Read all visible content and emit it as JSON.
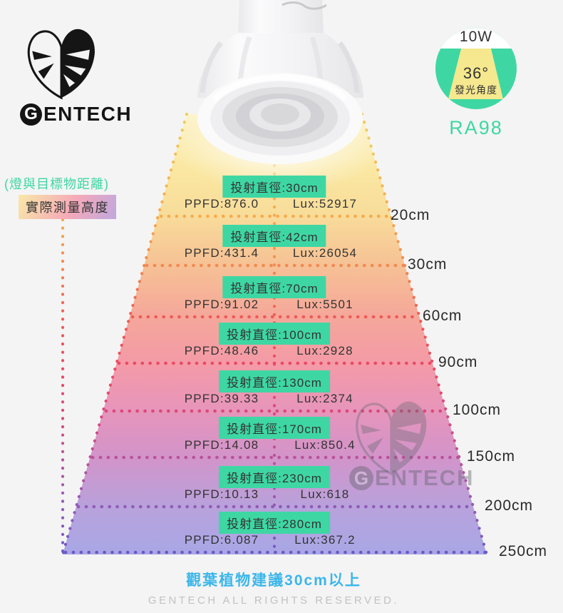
{
  "brand": {
    "logo_g": "G",
    "logo_rest": "ENTECH",
    "logo_icon": "monstera-leaf-icon"
  },
  "badge": {
    "wattage": "10W",
    "beam_angle": "36°",
    "beam_angle_label": "發光角度",
    "cri": "RA98",
    "circle_color": "#3ed7a3",
    "cone_color": "#f5e88e"
  },
  "left_labels": {
    "distance_note": "(燈與目標物距離)",
    "height_label": "實際測量高度"
  },
  "levels": [
    {
      "diameter": "投射直徑:30cm",
      "ppfd": "PPFD:876.0",
      "lux": "Lux:52917",
      "distance": "20cm",
      "line_color": "#f7ab4b"
    },
    {
      "diameter": "投射直徑:42cm",
      "ppfd": "PPFD:431.4",
      "lux": "Lux:26054",
      "distance": "30cm",
      "line_color": "#f28950"
    },
    {
      "diameter": "投射直徑:70cm",
      "ppfd": "PPFD:91.02",
      "lux": "Lux:5501",
      "distance": "60cm",
      "line_color": "#ee5b55"
    },
    {
      "diameter": "投射直徑:100cm",
      "ppfd": "PPFD:48.46",
      "lux": "Lux:2928",
      "distance": "90cm",
      "line_color": "#ea4a62"
    },
    {
      "diameter": "投射直徑:130cm",
      "ppfd": "PPFD:39.33",
      "lux": "Lux:2374",
      "distance": "100cm",
      "line_color": "#db4879"
    },
    {
      "diameter": "投射直徑:170cm",
      "ppfd": "PPFD:14.08",
      "lux": "Lux:850.4",
      "distance": "150cm",
      "line_color": "#ba5296"
    },
    {
      "diameter": "投射直徑:230cm",
      "ppfd": "PPFD:10.13",
      "lux": "Lux:618",
      "distance": "200cm",
      "line_color": "#8f5bb8"
    },
    {
      "diameter": "投射直徑:280cm",
      "ppfd": "PPFD:6.087",
      "lux": "Lux:367.2",
      "distance": "250cm",
      "line_color": "#6e59c5"
    }
  ],
  "watermark": {
    "logo_g": "G",
    "logo_rest": "ENTECH",
    "logo_icon": "monstera-leaf-icon"
  },
  "footer": {
    "recommendation": "觀葉植物建議30cm以上",
    "copyright": "GENTECH ALL RIGHTS RESERVED."
  },
  "colors": {
    "accent_teal": "#3ed7a3",
    "footer_blue": "#3bb6ea",
    "cone_top": "#fcf4cf",
    "cone_bottom": "#a8a7e6",
    "background": "#f4f4f4"
  }
}
